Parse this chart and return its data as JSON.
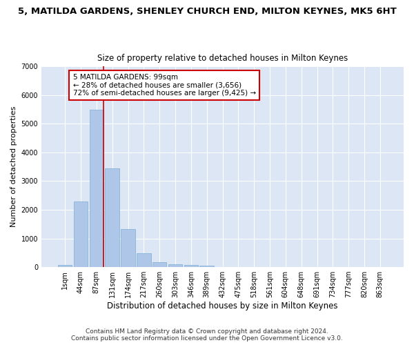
{
  "title_line1": "5, MATILDA GARDENS, SHENLEY CHURCH END, MILTON KEYNES, MK5 6HT",
  "title_line2": "Size of property relative to detached houses in Milton Keynes",
  "xlabel": "Distribution of detached houses by size in Milton Keynes",
  "ylabel": "Number of detached properties",
  "footnote": "Contains HM Land Registry data © Crown copyright and database right 2024.\nContains public sector information licensed under the Open Government Licence v3.0.",
  "bar_labels": [
    "1sqm",
    "44sqm",
    "87sqm",
    "131sqm",
    "174sqm",
    "217sqm",
    "260sqm",
    "303sqm",
    "346sqm",
    "389sqm",
    "432sqm",
    "475sqm",
    "518sqm",
    "561sqm",
    "604sqm",
    "648sqm",
    "691sqm",
    "734sqm",
    "777sqm",
    "820sqm",
    "863sqm"
  ],
  "bar_heights": [
    80,
    2280,
    5480,
    3450,
    1320,
    480,
    165,
    100,
    65,
    40,
    0,
    0,
    0,
    0,
    0,
    0,
    0,
    0,
    0,
    0,
    0
  ],
  "bar_color": "#aec6e8",
  "bar_edgecolor": "#7aaed4",
  "background_color": "#dce6f5",
  "grid_color": "#ffffff",
  "vline_color": "#cc0000",
  "annotation_text": "5 MATILDA GARDENS: 99sqm\n← 28% of detached houses are smaller (3,656)\n72% of semi-detached houses are larger (9,425) →",
  "annotation_box_edgecolor": "#cc0000",
  "annotation_box_facecolor": "#ffffff",
  "ylim": [
    0,
    7000
  ],
  "yticks": [
    0,
    1000,
    2000,
    3000,
    4000,
    5000,
    6000,
    7000
  ],
  "title_fontsize": 9.5,
  "subtitle_fontsize": 8.5,
  "annotation_fontsize": 7.5,
  "xlabel_fontsize": 8.5,
  "ylabel_fontsize": 8,
  "footnote_fontsize": 6.5,
  "tick_fontsize": 7
}
